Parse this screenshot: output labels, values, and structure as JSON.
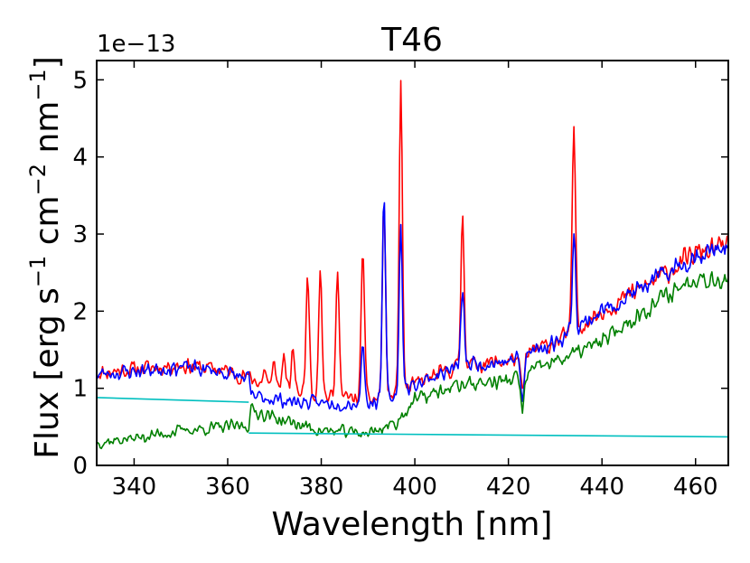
{
  "chart_data": {
    "type": "line",
    "title": "T46",
    "xlabel": "Wavelength [nm]",
    "ylabel_parts": {
      "prefix": "Flux [erg s",
      "exp1": "−1",
      "mid1": " cm",
      "exp2": "−2",
      "mid2": " nm",
      "exp3": "−1",
      "suffix": "]"
    },
    "y_offset_text": "1e−13",
    "xlim": [
      332,
      467
    ],
    "ylim": [
      0,
      5.25
    ],
    "xticks": [
      340,
      360,
      380,
      400,
      420,
      440,
      460
    ],
    "xtick_labels": [
      "340",
      "360",
      "380",
      "400",
      "420",
      "440",
      "460"
    ],
    "yticks": [
      0,
      1,
      2,
      3,
      4,
      5
    ],
    "ytick_labels": [
      "0",
      "1",
      "2",
      "3",
      "4",
      "5"
    ],
    "series": [
      {
        "name": "red spectrum",
        "color": "#ff0000",
        "knots": [
          [
            332,
            1.2
          ],
          [
            340,
            1.25
          ],
          [
            350,
            1.3
          ],
          [
            358,
            1.25
          ],
          [
            364,
            1.15
          ],
          [
            370,
            1.0
          ],
          [
            380,
            0.9
          ],
          [
            390,
            0.85
          ],
          [
            396,
            0.9
          ],
          [
            400,
            1.05
          ],
          [
            410,
            1.3
          ],
          [
            420,
            1.35
          ],
          [
            430,
            1.6
          ],
          [
            440,
            2.0
          ],
          [
            450,
            2.35
          ],
          [
            460,
            2.75
          ],
          [
            467,
            2.85
          ]
        ],
        "noise": 0.09,
        "lines": [
          [
            368,
            1.25
          ],
          [
            370,
            1.35
          ],
          [
            372,
            1.45
          ],
          [
            374,
            1.5
          ],
          [
            377.1,
            2.52
          ],
          [
            379.8,
            2.6
          ],
          [
            383.5,
            2.6
          ],
          [
            388.9,
            2.83
          ],
          [
            393.4,
            3.42
          ],
          [
            397.0,
            4.93
          ],
          [
            410.2,
            3.25
          ],
          [
            434.0,
            4.4
          ]
        ],
        "absorptions": [
          [
            423,
            0.5
          ]
        ],
        "seed": 11
      },
      {
        "name": "blue spectrum",
        "color": "#0000ff",
        "knots": [
          [
            332,
            1.18
          ],
          [
            340,
            1.22
          ],
          [
            350,
            1.28
          ],
          [
            358,
            1.22
          ],
          [
            364.5,
            1.12
          ],
          [
            365,
            0.9
          ],
          [
            375,
            0.82
          ],
          [
            385,
            0.8
          ],
          [
            392,
            0.82
          ],
          [
            396,
            0.9
          ],
          [
            400,
            1.05
          ],
          [
            410,
            1.3
          ],
          [
            420,
            1.35
          ],
          [
            430,
            1.6
          ],
          [
            440,
            2.0
          ],
          [
            450,
            2.35
          ],
          [
            460,
            2.72
          ],
          [
            467,
            2.85
          ]
        ],
        "noise": 0.085,
        "lines": [
          [
            388.9,
            1.6
          ],
          [
            393.4,
            3.42
          ],
          [
            397.0,
            3.08
          ],
          [
            410.2,
            2.25
          ],
          [
            434.0,
            3.05
          ]
        ],
        "absorptions": [
          [
            423,
            0.55
          ]
        ],
        "seed": 23
      },
      {
        "name": "green spectrum",
        "color": "#008000",
        "knots": [
          [
            332,
            0.3
          ],
          [
            340,
            0.35
          ],
          [
            350,
            0.45
          ],
          [
            360,
            0.5
          ],
          [
            364.5,
            0.52
          ],
          [
            365,
            0.72
          ],
          [
            372,
            0.58
          ],
          [
            380,
            0.45
          ],
          [
            390,
            0.42
          ],
          [
            396,
            0.55
          ],
          [
            400,
            0.85
          ],
          [
            410,
            1.05
          ],
          [
            420,
            1.1
          ],
          [
            430,
            1.35
          ],
          [
            440,
            1.6
          ],
          [
            450,
            2.05
          ],
          [
            460,
            2.45
          ],
          [
            467,
            2.4
          ]
        ],
        "noise": 0.085,
        "lines": [],
        "absorptions": [
          [
            423,
            0.45
          ]
        ],
        "seed": 37
      },
      {
        "name": "cyan continuum",
        "color": "#00bfbf",
        "segments": [
          [
            [
              332,
              0.88
            ],
            [
              364.5,
              0.82
            ]
          ],
          [
            [
              364.5,
              0.42
            ],
            [
              467,
              0.37
            ]
          ]
        ]
      }
    ]
  }
}
